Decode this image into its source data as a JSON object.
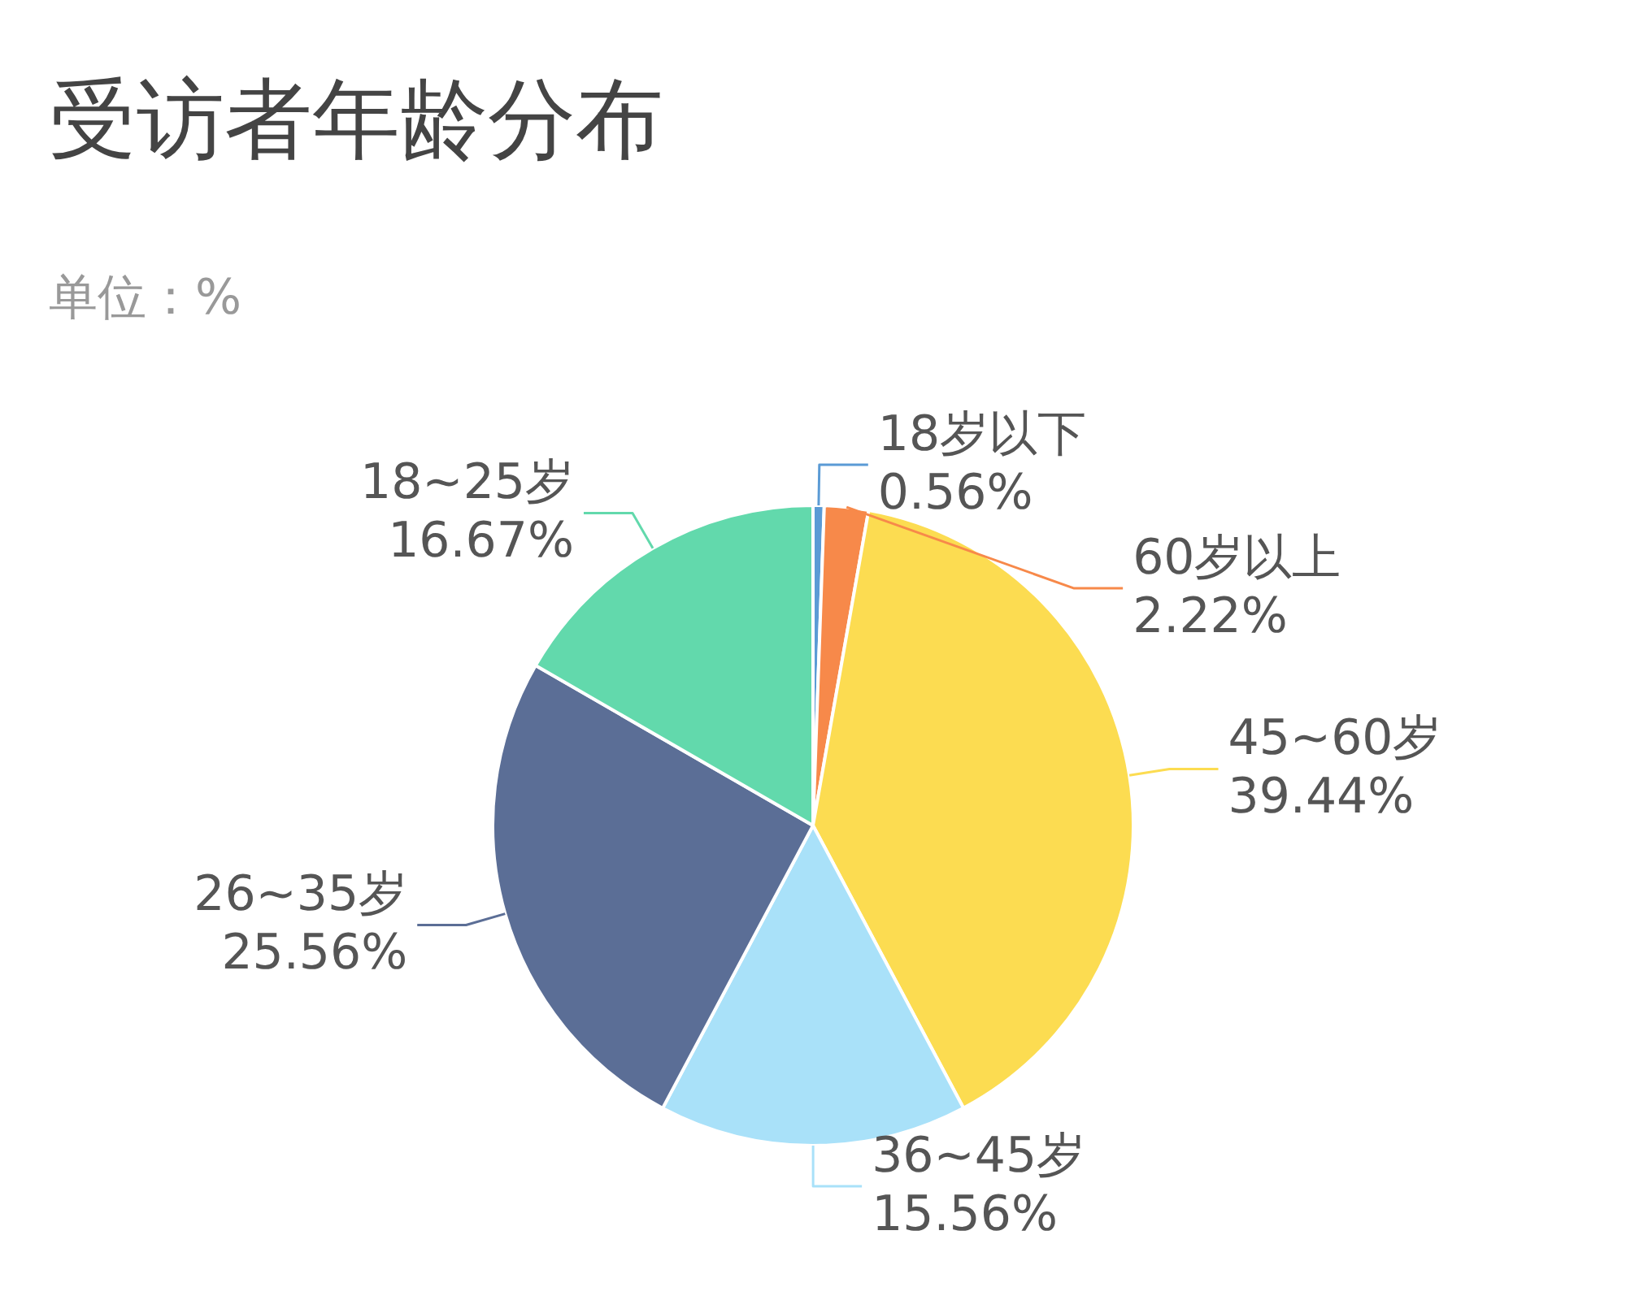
{
  "chart_data": {
    "type": "pie",
    "title": "受访者年龄分布",
    "subtitle": "单位：%",
    "categories": [
      "18岁以下",
      "60岁以上",
      "45~60岁",
      "36~45岁",
      "26~35岁",
      "18~25岁"
    ],
    "values": [
      0.56,
      2.22,
      39.44,
      15.56,
      25.56,
      16.67
    ],
    "value_labels": [
      "0.56%",
      "2.22%",
      "39.44%",
      "15.56%",
      "25.56%",
      "16.67%"
    ],
    "colors": [
      "#5b9bd5",
      "#f7894a",
      "#fcdc51",
      "#a9e1f9",
      "#5b6e96",
      "#62d9ac"
    ]
  }
}
